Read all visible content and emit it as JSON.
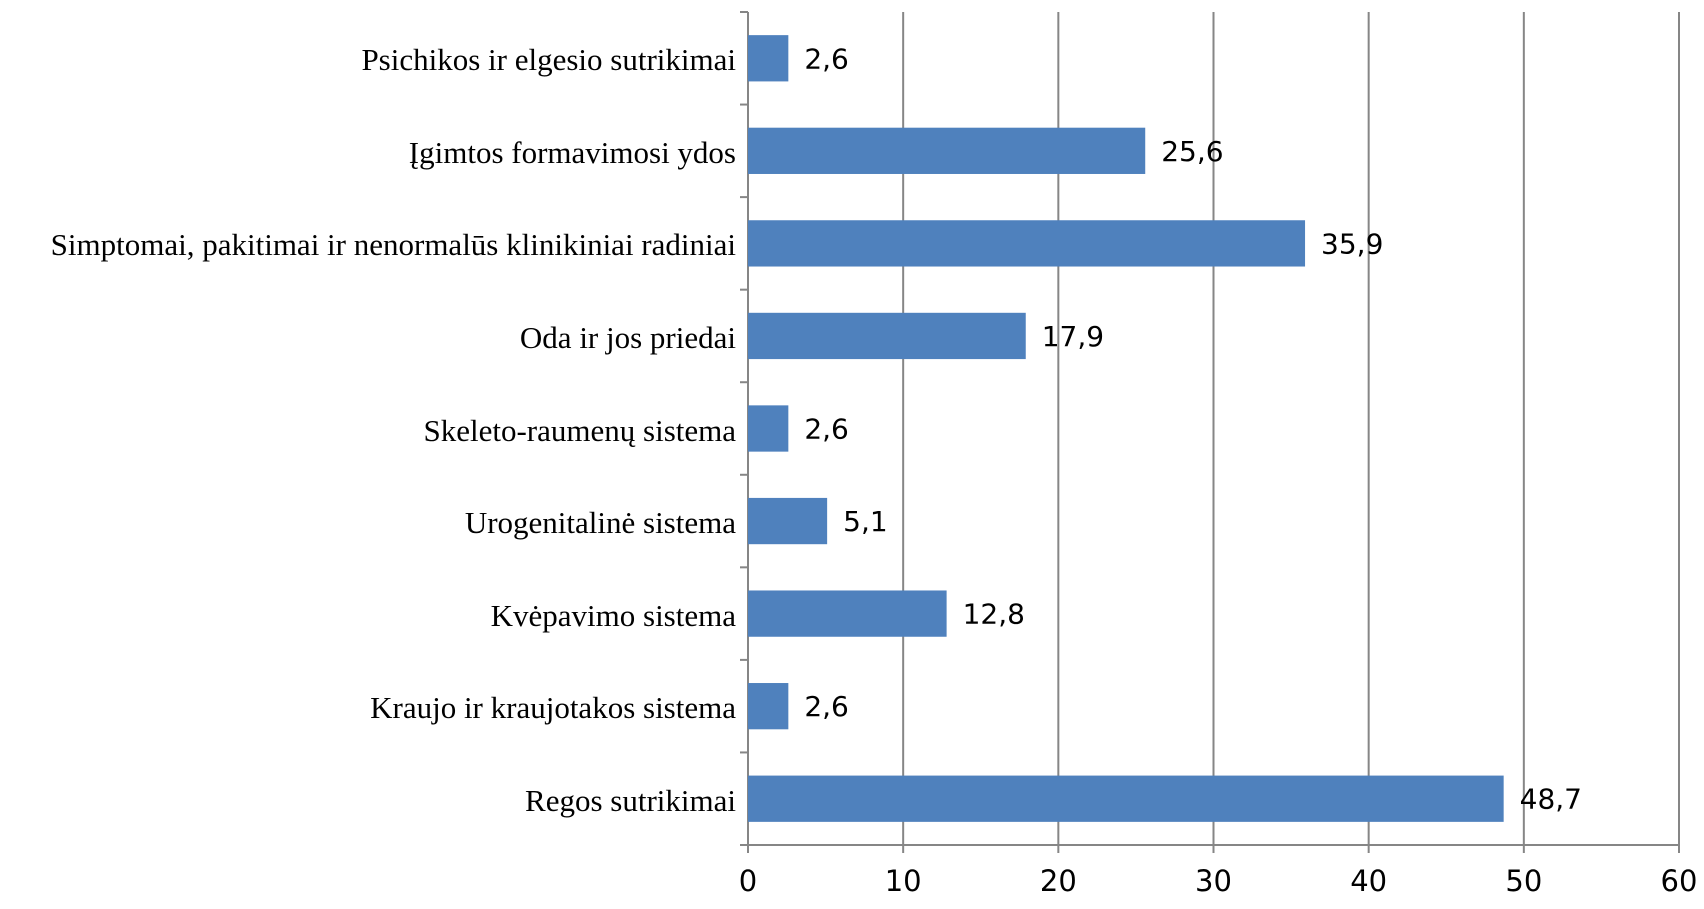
{
  "chart_data": {
    "type": "bar",
    "orientation": "horizontal",
    "categories": [
      "Psichikos ir elgesio sutrikimai",
      "Įgimtos formavimosi ydos",
      "Simptomai, pakitimai ir nenormalūs klinikiniai radiniai",
      "Oda ir jos priedai",
      "Skeleto-raumenų sistema",
      "Urogenitalinė sistema",
      "Kvėpavimo sistema",
      "Kraujo ir kraujotakos sistema",
      "Regos sutrikimai"
    ],
    "values": [
      2.6,
      25.6,
      35.9,
      17.9,
      2.6,
      5.1,
      12.8,
      2.6,
      48.7
    ],
    "value_labels": [
      "2,6",
      "25,6",
      "35,9",
      "17,9",
      "2,6",
      "5,1",
      "12,8",
      "2,6",
      "48,7"
    ],
    "color": "#4f81bd",
    "xlim": [
      0,
      60
    ],
    "xticks": [
      0,
      10,
      20,
      30,
      40,
      50,
      60
    ],
    "grid": true
  }
}
